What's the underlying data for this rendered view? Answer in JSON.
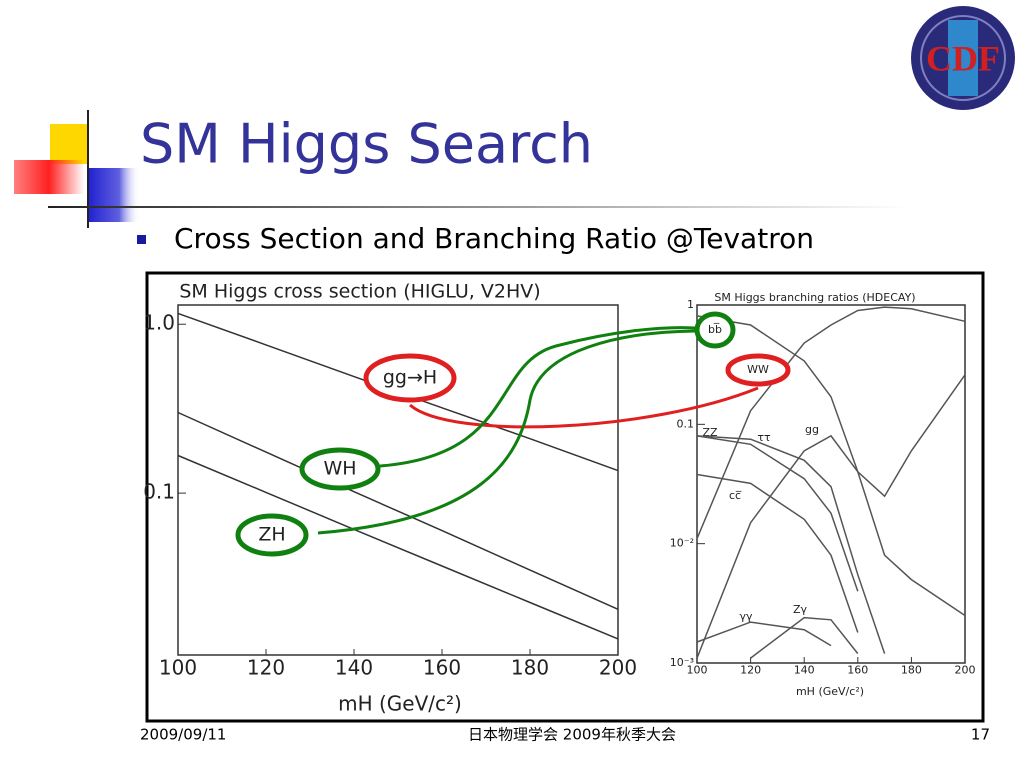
{
  "slide": {
    "logo": "CDF",
    "title": "SM Higgs Search",
    "bullet": "Cross Section and Branching Ratio @Tevatron",
    "footer": {
      "date": "2009/09/11",
      "event": "日本物理学会 2009年秋季大会",
      "page": "17"
    }
  },
  "chart_data": [
    {
      "type": "line",
      "title": "SM Higgs cross section (HIGLU, V2HV)",
      "x_label": "mH (GeV/c²)",
      "log_y": true,
      "x": [
        100,
        120,
        140,
        160,
        180,
        200
      ],
      "xlim": [
        100,
        200
      ],
      "xticks": [
        100,
        120,
        140,
        160,
        180,
        200
      ],
      "ylim": [
        0.011,
        1.3
      ],
      "yticks": [
        {
          "value": 1,
          "label": "1.0"
        },
        0.1
      ],
      "series": [
        {
          "name": "gg→H",
          "color": "#333333",
          "values": [
            1.16,
            0.755,
            0.49,
            0.32,
            0.21,
            0.136
          ]
        },
        {
          "name": "WH",
          "color": "#333333",
          "values": [
            0.3,
            0.175,
            0.102,
            0.06,
            0.035,
            0.0205
          ]
        },
        {
          "name": "ZH",
          "color": "#333333",
          "values": [
            0.167,
            0.101,
            0.061,
            0.037,
            0.0225,
            0.0137
          ]
        }
      ]
    },
    {
      "type": "line",
      "title": "SM Higgs branching ratios (HDECAY)",
      "x_label": "mH (GeV/c²)",
      "log_y": true,
      "x": [
        100,
        120,
        140,
        150,
        160,
        170,
        180,
        200
      ],
      "xlim": [
        100,
        200
      ],
      "xticks": [
        100,
        120,
        140,
        160,
        180,
        200
      ],
      "ylim": [
        0.001,
        1
      ],
      "yticks": [
        1,
        0.1,
        {
          "value": 0.01,
          "label": "10⁻²"
        },
        {
          "value": 0.001,
          "label": "10⁻³"
        }
      ],
      "series": [
        {
          "name": "bb̅",
          "color": "#555555",
          "values": [
            0.81,
            0.68,
            0.34,
            0.17,
            0.04,
            0.008,
            0.005,
            0.0025
          ]
        },
        {
          "name": "WW",
          "color": "#555555",
          "values": [
            0.011,
            0.13,
            0.48,
            0.68,
            0.9,
            0.96,
            0.93,
            0.73
          ]
        },
        {
          "name": "ZZ",
          "color": "#555555",
          "values": [
            0.0011,
            0.015,
            0.06,
            0.08,
            0.04,
            0.025,
            0.06,
            0.26
          ]
        },
        {
          "name": "ττ",
          "color": "#555555",
          "values": [
            0.08,
            0.068,
            0.035,
            0.018,
            0.004,
            null,
            null,
            null
          ]
        },
        {
          "name": "gg",
          "color": "#555555",
          "values": [
            0.08,
            0.075,
            0.05,
            0.03,
            0.0055,
            0.0012,
            null,
            null
          ]
        },
        {
          "name": "cc̅",
          "color": "#555555",
          "values": [
            0.038,
            0.032,
            0.016,
            0.008,
            0.0018,
            null,
            null,
            null
          ]
        },
        {
          "name": "γγ",
          "color": "#555555",
          "values": [
            0.0015,
            0.0022,
            0.0019,
            0.0014,
            null,
            null,
            null,
            null
          ]
        },
        {
          "name": "Zγ",
          "color": "#555555",
          "values": [
            null,
            0.0011,
            0.0024,
            0.0023,
            0.0012,
            null,
            null,
            null
          ]
        }
      ]
    }
  ]
}
